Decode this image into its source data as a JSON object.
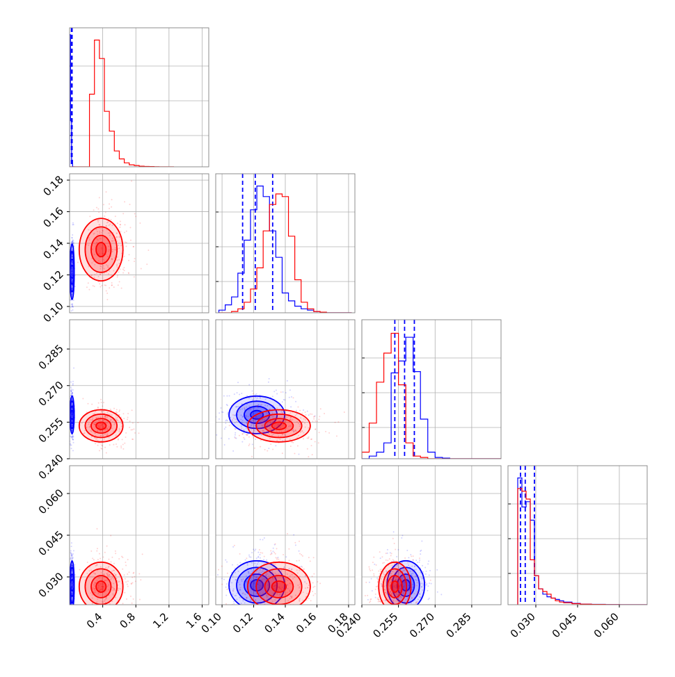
{
  "chart_data": {
    "type": "corner",
    "parameters": [
      {
        "ticks": [
          0.4,
          0.8,
          1.2,
          1.6
        ],
        "tick_labels": [
          "0.4",
          "0.8",
          "1.2",
          "1.6"
        ],
        "range": [
          0.0,
          1.68
        ]
      },
      {
        "ticks": [
          0.1,
          0.12,
          0.14,
          0.16,
          0.18
        ],
        "tick_labels": [
          "0.10",
          "0.12",
          "0.14",
          "0.16",
          "0.18"
        ],
        "range": [
          0.096,
          0.184
        ]
      },
      {
        "ticks": [
          0.24,
          0.255,
          0.27,
          0.285
        ],
        "tick_labels": [
          "0.240",
          "0.255",
          "0.270",
          "0.285"
        ],
        "range": [
          0.24,
          0.297
        ]
      },
      {
        "ticks": [
          0.03,
          0.045,
          0.06
        ],
        "tick_labels": [
          "0.030",
          "0.045",
          "0.060"
        ],
        "range": [
          0.02,
          0.07
        ]
      }
    ],
    "series": [
      {
        "color": "#0000ff",
        "centers": [
          0.03,
          0.122,
          0.258,
          0.027
        ],
        "spreads": [
          0.008,
          0.008,
          0.0035,
          0.004
        ],
        "hist_1d": [
          {
            "bins": [
              0.0,
              0.012,
              0.024,
              0.036,
              0.048,
              0.06
            ],
            "counts": [
              1.0,
              0.35,
              0.05,
              0.0,
              0.0
            ]
          },
          {
            "bins": [
              0.098,
              0.102,
              0.106,
              0.11,
              0.114,
              0.118,
              0.122,
              0.126,
              0.13,
              0.134,
              0.138,
              0.142,
              0.146,
              0.15,
              0.154,
              0.158,
              0.162,
              0.166,
              0.17,
              0.174,
              0.178,
              0.182
            ],
            "counts": [
              0.02,
              0.06,
              0.12,
              0.3,
              0.55,
              0.78,
              0.96,
              0.88,
              0.62,
              0.42,
              0.15,
              0.09,
              0.05,
              0.03,
              0.02,
              0.01,
              0.005,
              0.0,
              0.0,
              0.0,
              0.0
            ]
          },
          {
            "bins": [
              0.24,
              0.243,
              0.246,
              0.249,
              0.252,
              0.255,
              0.258,
              0.261,
              0.264,
              0.267,
              0.27,
              0.273,
              0.276,
              0.279,
              0.282,
              0.285,
              0.288,
              0.291,
              0.294,
              0.297
            ],
            "counts": [
              0.0,
              0.02,
              0.05,
              0.12,
              0.65,
              0.74,
              0.92,
              0.66,
              0.3,
              0.05,
              0.01,
              0.005,
              0.0,
              0.0,
              0.0,
              0.0,
              0.0,
              0.0,
              0.0
            ]
          },
          {
            "bins": [
              0.0235,
              0.025,
              0.0265,
              0.028,
              0.0295,
              0.031,
              0.0325,
              0.034,
              0.0355,
              0.037,
              0.0385,
              0.04,
              0.043,
              0.046,
              0.05,
              0.055,
              0.06,
              0.065,
              0.07
            ],
            "counts": [
              0.96,
              0.74,
              0.78,
              0.64,
              0.22,
              0.12,
              0.08,
              0.06,
              0.05,
              0.04,
              0.03,
              0.02,
              0.01,
              0.005,
              0.003,
              0.001,
              0.0,
              0.0
            ]
          }
        ],
        "quantiles": [
          [
            0.022,
            0.026,
            0.03
          ],
          [
            0.113,
            0.121,
            0.132
          ],
          [
            0.2535,
            0.2575,
            0.2615
          ],
          [
            0.0245,
            0.0262,
            0.0295
          ]
        ]
      },
      {
        "color": "#ff0000",
        "centers": [
          0.38,
          0.136,
          0.2535,
          0.0265
        ],
        "spreads": [
          0.12,
          0.009,
          0.003,
          0.004
        ],
        "hist_1d": [
          {
            "bins": [
              0.0,
              0.06,
              0.12,
              0.18,
              0.24,
              0.3,
              0.36,
              0.42,
              0.48,
              0.54,
              0.6,
              0.66,
              0.72,
              0.78,
              0.84,
              0.9,
              0.96,
              1.02,
              1.08,
              1.14,
              1.2,
              1.26
            ],
            "counts": [
              0.0,
              0.0,
              0.0,
              0.0,
              0.55,
              0.96,
              0.82,
              0.42,
              0.27,
              0.12,
              0.06,
              0.03,
              0.015,
              0.01,
              0.005,
              0.003,
              0.002,
              0.001,
              0.0,
              0.0,
              0.0
            ]
          },
          {
            "bins": [
              0.098,
              0.102,
              0.106,
              0.11,
              0.114,
              0.118,
              0.122,
              0.126,
              0.13,
              0.134,
              0.138,
              0.142,
              0.146,
              0.15,
              0.154,
              0.158,
              0.162,
              0.166,
              0.17,
              0.174,
              0.178,
              0.182
            ],
            "counts": [
              0.0,
              0.0,
              0.01,
              0.03,
              0.08,
              0.18,
              0.34,
              0.62,
              0.82,
              0.9,
              0.88,
              0.58,
              0.25,
              0.08,
              0.03,
              0.01,
              0.005,
              0.0,
              0.0,
              0.0,
              0.0
            ]
          },
          {
            "bins": [
              0.24,
              0.243,
              0.246,
              0.249,
              0.252,
              0.255,
              0.258,
              0.261,
              0.264,
              0.267,
              0.27,
              0.273,
              0.276,
              0.279,
              0.282,
              0.285,
              0.288,
              0.291,
              0.294,
              0.297
            ],
            "counts": [
              0.05,
              0.27,
              0.58,
              0.8,
              0.95,
              0.56,
              0.12,
              0.02,
              0.01,
              0.0,
              0.0,
              0.0,
              0.0,
              0.0,
              0.0,
              0.0,
              0.0,
              0.0,
              0.0
            ]
          },
          {
            "bins": [
              0.0235,
              0.025,
              0.0265,
              0.028,
              0.0295,
              0.031,
              0.0325,
              0.034,
              0.0355,
              0.037,
              0.0385,
              0.04,
              0.043,
              0.046,
              0.05,
              0.055,
              0.06,
              0.065,
              0.07
            ],
            "counts": [
              0.88,
              0.86,
              0.8,
              0.34,
              0.22,
              0.12,
              0.1,
              0.08,
              0.05,
              0.03,
              0.02,
              0.015,
              0.008,
              0.004,
              0.002,
              0.001,
              0.0,
              0.0
            ]
          }
        ]
      }
    ],
    "grid": true
  }
}
